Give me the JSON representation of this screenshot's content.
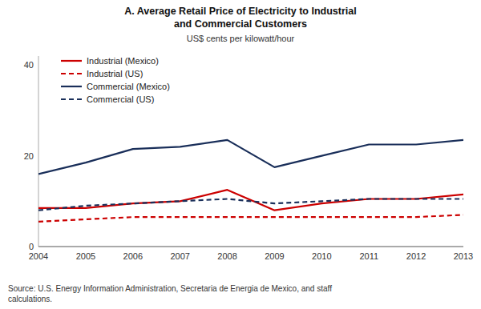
{
  "chart_data": {
    "type": "line",
    "title": "A. Average Retail Price of Electricity to Industrial\nand Commercial Customers",
    "subtitle": "US$ cents per kilowatt/hour",
    "source": "Source: U.S. Energy Information Administration, Secretaria de Energia de Mexico, and staff\ncalculations.",
    "x": [
      2004,
      2005,
      2006,
      2007,
      2008,
      2009,
      2010,
      2011,
      2012,
      2013
    ],
    "series": [
      {
        "name": "Industrial (Mexico)",
        "color": "#cc0000",
        "line_style": "solid",
        "values": [
          8.5,
          8.5,
          9.5,
          10.0,
          12.5,
          8.0,
          9.5,
          10.5,
          10.5,
          11.5
        ]
      },
      {
        "name": "Industrial (US)",
        "color": "#cc0000",
        "line_style": "dashed",
        "values": [
          5.5,
          6.0,
          6.5,
          6.5,
          6.5,
          6.5,
          6.5,
          6.5,
          6.5,
          7.0
        ]
      },
      {
        "name": "Commercial (Mexico)",
        "color": "#1a2f5a",
        "line_style": "solid",
        "values": [
          16.0,
          18.5,
          21.5,
          22.0,
          23.5,
          17.5,
          20.0,
          22.5,
          22.5,
          23.5
        ]
      },
      {
        "name": "Commercial (US)",
        "color": "#1a2f5a",
        "line_style": "dashed",
        "values": [
          8.0,
          9.0,
          9.5,
          10.0,
          10.5,
          9.5,
          10.0,
          10.5,
          10.5,
          10.5
        ]
      }
    ],
    "xlim": [
      2004,
      2013
    ],
    "xticks": [
      2004,
      2005,
      2006,
      2007,
      2008,
      2009,
      2010,
      2011,
      2012,
      2013
    ],
    "ylim": [
      0,
      42
    ],
    "yticks": [
      0,
      20,
      40
    ],
    "grid": false,
    "legend": "upper left"
  }
}
